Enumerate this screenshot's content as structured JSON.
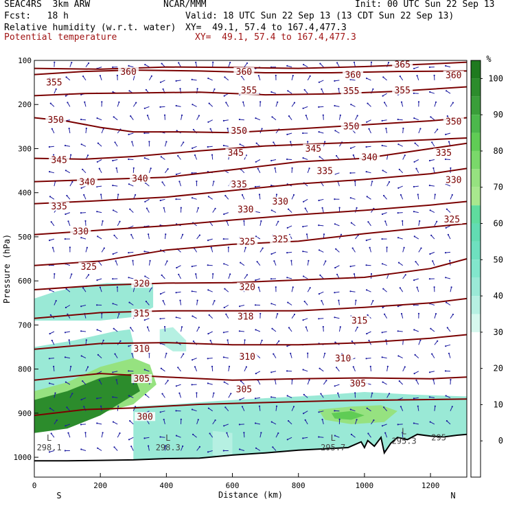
{
  "header": {
    "model": "SEAC4RS  3km ARW",
    "org": "NCAR/MMM",
    "init": "Init: 00 UTC Sun 22 Sep 13",
    "fcst": "Fcst:   18 h",
    "valid": "Valid: 18 UTC Sun 22 Sep 13 (13 CDT Sun 22 Sep 13)",
    "field1": "Relative humidity (w.r.t. water)",
    "field1_xy": "XY=  49.1, 57.4 to 167.4,477.3",
    "field2": "Potential temperature",
    "field2_xy": "XY=  49.1, 57.4 to 167.4,477.3"
  },
  "chart_data": {
    "type": "heatmap",
    "xlabel": "Distance (km)",
    "ylabel": "Pressure (hPa)",
    "xlim": [
      0,
      1310
    ],
    "ylim": [
      100,
      1045
    ],
    "x_ticks": [
      0,
      200,
      400,
      600,
      800,
      1000,
      1200
    ],
    "y_ticks": [
      100,
      200,
      300,
      400,
      500,
      600,
      700,
      800,
      900,
      1000
    ],
    "x_end_labels": {
      "left": "S",
      "right": "N"
    },
    "colorbar": {
      "unit": "%",
      "ticks": [
        100,
        90,
        80,
        70,
        60,
        50,
        40,
        30,
        20,
        10,
        0
      ],
      "bands": [
        {
          "from": 100,
          "to": 105,
          "color": "#1f7a1f"
        },
        {
          "from": 95,
          "to": 100,
          "color": "#2c8c2c"
        },
        {
          "from": 90,
          "to": 95,
          "color": "#3a9e3a"
        },
        {
          "from": 85,
          "to": 90,
          "color": "#4cb84c"
        },
        {
          "from": 80,
          "to": 85,
          "color": "#60cc55"
        },
        {
          "from": 75,
          "to": 80,
          "color": "#7ad86a"
        },
        {
          "from": 70,
          "to": 75,
          "color": "#96e280"
        },
        {
          "from": 65,
          "to": 70,
          "color": "#a8e88e"
        },
        {
          "from": 60,
          "to": 65,
          "color": "#5fdc9e"
        },
        {
          "from": 55,
          "to": 60,
          "color": "#62dcb2"
        },
        {
          "from": 50,
          "to": 55,
          "color": "#6ee0bf"
        },
        {
          "from": 45,
          "to": 50,
          "color": "#82e6cc"
        },
        {
          "from": 40,
          "to": 45,
          "color": "#9ae9d6"
        },
        {
          "from": 35,
          "to": 40,
          "color": "#b6f0e2"
        },
        {
          "from": 30,
          "to": 35,
          "color": "#d6f8ee"
        }
      ]
    },
    "rh_regions": [
      {
        "rh": 40,
        "points": [
          [
            0,
            640
          ],
          [
            60,
            625
          ],
          [
            140,
            612
          ],
          [
            220,
            605
          ],
          [
            360,
            606
          ],
          [
            360,
            660
          ],
          [
            300,
            682
          ],
          [
            200,
            690
          ],
          [
            100,
            690
          ],
          [
            0,
            690
          ]
        ]
      },
      {
        "rh": 35,
        "points": [
          [
            380,
            710
          ],
          [
            420,
            705
          ],
          [
            460,
            735
          ],
          [
            460,
            760
          ],
          [
            420,
            760
          ],
          [
            380,
            740
          ]
        ]
      },
      {
        "rh": 40,
        "points": [
          [
            0,
            750
          ],
          [
            120,
            735
          ],
          [
            240,
            715
          ],
          [
            290,
            710
          ],
          [
            300,
            740
          ],
          [
            300,
            835
          ],
          [
            250,
            870
          ],
          [
            150,
            895
          ],
          [
            0,
            900
          ]
        ]
      },
      {
        "rh": 70,
        "points": [
          [
            0,
            850
          ],
          [
            100,
            830
          ],
          [
            200,
            795
          ],
          [
            300,
            775
          ],
          [
            350,
            790
          ],
          [
            370,
            835
          ],
          [
            300,
            880
          ],
          [
            150,
            910
          ],
          [
            0,
            920
          ]
        ]
      },
      {
        "rh": 95,
        "points": [
          [
            0,
            870
          ],
          [
            100,
            850
          ],
          [
            200,
            820
          ],
          [
            300,
            810
          ],
          [
            320,
            850
          ],
          [
            200,
            905
          ],
          [
            100,
            935
          ],
          [
            0,
            945
          ]
        ]
      },
      {
        "rh": 40,
        "points": [
          [
            300,
            885
          ],
          [
            420,
            880
          ],
          [
            560,
            872
          ],
          [
            700,
            866
          ],
          [
            850,
            860
          ],
          [
            1000,
            852
          ],
          [
            1150,
            858
          ],
          [
            1310,
            862
          ],
          [
            1310,
            950
          ],
          [
            1100,
            985
          ],
          [
            700,
            1000
          ],
          [
            500,
            1008
          ],
          [
            300,
            1010
          ]
        ]
      },
      {
        "rh": 70,
        "points": [
          [
            860,
            892
          ],
          [
            960,
            885
          ],
          [
            1050,
            882
          ],
          [
            1100,
            895
          ],
          [
            1060,
            920
          ],
          [
            960,
            925
          ],
          [
            880,
            915
          ]
        ]
      },
      {
        "rh": 80,
        "points": [
          [
            900,
            900
          ],
          [
            960,
            895
          ],
          [
            1000,
            905
          ],
          [
            960,
            915
          ],
          [
            910,
            912
          ]
        ]
      },
      {
        "rh": 35,
        "points": [
          [
            540,
            940
          ],
          [
            600,
            945
          ],
          [
            600,
            1000
          ],
          [
            540,
            995
          ]
        ]
      }
    ],
    "potential_temperature": [
      {
        "theta": 365,
        "points": [
          [
            0,
            118
          ],
          [
            200,
            120
          ],
          [
            400,
            115
          ],
          [
            600,
            116
          ],
          [
            800,
            118
          ],
          [
            1000,
            114
          ],
          [
            1200,
            108
          ],
          [
            1310,
            104
          ]
        ]
      },
      {
        "theta": 360,
        "points": [
          [
            0,
            132
          ],
          [
            150,
            125
          ],
          [
            300,
            122
          ],
          [
            500,
            124
          ],
          [
            700,
            128
          ],
          [
            900,
            128
          ],
          [
            1100,
            125
          ],
          [
            1310,
            124
          ]
        ]
      },
      {
        "theta": 355,
        "points": [
          [
            0,
            180
          ],
          [
            150,
            175
          ],
          [
            300,
            174
          ],
          [
            500,
            172
          ],
          [
            700,
            178
          ],
          [
            900,
            176
          ],
          [
            1100,
            170
          ],
          [
            1310,
            160
          ]
        ]
      },
      {
        "theta": 350,
        "points": [
          [
            0,
            230
          ],
          [
            100,
            238
          ],
          [
            200,
            252
          ],
          [
            300,
            262
          ],
          [
            450,
            262
          ],
          [
            600,
            264
          ],
          [
            800,
            255
          ],
          [
            1000,
            246
          ],
          [
            1200,
            237
          ],
          [
            1310,
            230
          ]
        ]
      },
      {
        "theta": 345,
        "points": [
          [
            0,
            322
          ],
          [
            150,
            324
          ],
          [
            300,
            318
          ],
          [
            500,
            305
          ],
          [
            700,
            294
          ],
          [
            900,
            288
          ],
          [
            1100,
            283
          ],
          [
            1310,
            276
          ]
        ]
      },
      {
        "theta": 340,
        "points": [
          [
            0,
            375
          ],
          [
            200,
            370
          ],
          [
            400,
            365
          ],
          [
            600,
            348
          ],
          [
            800,
            330
          ],
          [
            1000,
            322
          ],
          [
            1200,
            300
          ],
          [
            1310,
            288
          ]
        ]
      },
      {
        "theta": 335,
        "points": [
          [
            0,
            425
          ],
          [
            200,
            418
          ],
          [
            400,
            410
          ],
          [
            600,
            395
          ],
          [
            800,
            380
          ],
          [
            1000,
            370
          ],
          [
            1200,
            357
          ],
          [
            1310,
            345
          ]
        ]
      },
      {
        "theta": 330,
        "points": [
          [
            0,
            495
          ],
          [
            200,
            485
          ],
          [
            400,
            475
          ],
          [
            600,
            462
          ],
          [
            800,
            450
          ],
          [
            1000,
            440
          ],
          [
            1200,
            428
          ],
          [
            1310,
            420
          ]
        ]
      },
      {
        "theta": 325,
        "points": [
          [
            0,
            565
          ],
          [
            200,
            555
          ],
          [
            400,
            530
          ],
          [
            600,
            517
          ],
          [
            800,
            510
          ],
          [
            1000,
            493
          ],
          [
            1200,
            478
          ],
          [
            1310,
            470
          ]
        ]
      },
      {
        "theta": 320,
        "points": [
          [
            0,
            620
          ],
          [
            200,
            610
          ],
          [
            400,
            605
          ],
          [
            600,
            604
          ],
          [
            800,
            598
          ],
          [
            1000,
            592
          ],
          [
            1200,
            572
          ],
          [
            1310,
            550
          ]
        ]
      },
      {
        "theta": 315,
        "points": [
          [
            0,
            685
          ],
          [
            200,
            672
          ],
          [
            400,
            668
          ],
          [
            600,
            668
          ],
          [
            800,
            668
          ],
          [
            1000,
            660
          ],
          [
            1200,
            650
          ],
          [
            1310,
            640
          ]
        ]
      },
      {
        "theta": 310,
        "points": [
          [
            0,
            755
          ],
          [
            200,
            742
          ],
          [
            400,
            740
          ],
          [
            600,
            745
          ],
          [
            800,
            745
          ],
          [
            1000,
            740
          ],
          [
            1200,
            730
          ],
          [
            1310,
            722
          ]
        ]
      },
      {
        "theta": 305,
        "points": [
          [
            0,
            825
          ],
          [
            200,
            810
          ],
          [
            400,
            818
          ],
          [
            600,
            825
          ],
          [
            800,
            822
          ],
          [
            1000,
            820
          ],
          [
            1200,
            822
          ],
          [
            1310,
            818
          ]
        ]
      },
      {
        "theta": 300,
        "points": [
          [
            0,
            905
          ],
          [
            150,
            892
          ],
          [
            300,
            888
          ],
          [
            500,
            880
          ],
          [
            700,
            876
          ],
          [
            900,
            872
          ],
          [
            1100,
            870
          ],
          [
            1310,
            868
          ]
        ]
      }
    ],
    "theta_labels": [
      {
        "text": "365",
        "x": 1115,
        "p": 112
      },
      {
        "text": "360",
        "x": 285,
        "p": 128
      },
      {
        "text": "360",
        "x": 635,
        "p": 128
      },
      {
        "text": "360",
        "x": 965,
        "p": 135
      },
      {
        "text": "360",
        "x": 1270,
        "p": 136
      },
      {
        "text": "355",
        "x": 60,
        "p": 152
      },
      {
        "text": "355",
        "x": 650,
        "p": 170
      },
      {
        "text": "355",
        "x": 960,
        "p": 172
      },
      {
        "text": "355",
        "x": 1115,
        "p": 170
      },
      {
        "text": "350",
        "x": 65,
        "p": 237
      },
      {
        "text": "350",
        "x": 620,
        "p": 262
      },
      {
        "text": "350",
        "x": 960,
        "p": 252
      },
      {
        "text": "350",
        "x": 1270,
        "p": 241
      },
      {
        "text": "345",
        "x": 610,
        "p": 312
      },
      {
        "text": "345",
        "x": 845,
        "p": 302
      },
      {
        "text": "345",
        "x": 75,
        "p": 328
      },
      {
        "text": "340",
        "x": 1015,
        "p": 322
      },
      {
        "text": "335",
        "x": 1240,
        "p": 312
      },
      {
        "text": "335",
        "x": 880,
        "p": 353
      },
      {
        "text": "340",
        "x": 160,
        "p": 378
      },
      {
        "text": "340",
        "x": 320,
        "p": 370
      },
      {
        "text": "330",
        "x": 1270,
        "p": 373
      },
      {
        "text": "335",
        "x": 620,
        "p": 383
      },
      {
        "text": "330",
        "x": 745,
        "p": 422
      },
      {
        "text": "335",
        "x": 75,
        "p": 433
      },
      {
        "text": "330",
        "x": 640,
        "p": 440
      },
      {
        "text": "325",
        "x": 1265,
        "p": 463
      },
      {
        "text": "330",
        "x": 140,
        "p": 490
      },
      {
        "text": "325",
        "x": 645,
        "p": 513
      },
      {
        "text": "325",
        "x": 745,
        "p": 508
      },
      {
        "text": "325",
        "x": 165,
        "p": 570
      },
      {
        "text": "320",
        "x": 325,
        "p": 608
      },
      {
        "text": "320",
        "x": 645,
        "p": 616
      },
      {
        "text": "315",
        "x": 325,
        "p": 676
      },
      {
        "text": "318",
        "x": 640,
        "p": 683
      },
      {
        "text": "315",
        "x": 985,
        "p": 692
      },
      {
        "text": "310",
        "x": 325,
        "p": 756
      },
      {
        "text": "310",
        "x": 645,
        "p": 774
      },
      {
        "text": "310",
        "x": 935,
        "p": 778
      },
      {
        "text": "305",
        "x": 325,
        "p": 824
      },
      {
        "text": "305",
        "x": 635,
        "p": 848
      },
      {
        "text": "305",
        "x": 980,
        "p": 835
      },
      {
        "text": "300",
        "x": 335,
        "p": 910
      }
    ],
    "pressure_extrema": [
      {
        "label": "L",
        "value": "298.1",
        "x": 45,
        "p": 975
      },
      {
        "label": "L",
        "value": "298.3",
        "x": 405,
        "p": 975
      },
      {
        "label": "L",
        "value": "295.7",
        "x": 905,
        "p": 975
      },
      {
        "label": "L",
        "value": "295.3",
        "x": 1120,
        "p": 960
      },
      {
        "label": "",
        "value": "295",
        "x": 1225,
        "p": 952
      }
    ],
    "terrain": [
      [
        0,
        1008
      ],
      [
        100,
        1008
      ],
      [
        200,
        1007
      ],
      [
        300,
        1006
      ],
      [
        400,
        1003
      ],
      [
        500,
        1002
      ],
      [
        600,
        995
      ],
      [
        700,
        990
      ],
      [
        800,
        984
      ],
      [
        900,
        980
      ],
      [
        950,
        978
      ],
      [
        990,
        965
      ],
      [
        1000,
        978
      ],
      [
        1010,
        962
      ],
      [
        1030,
        975
      ],
      [
        1050,
        955
      ],
      [
        1060,
        990
      ],
      [
        1080,
        968
      ],
      [
        1100,
        955
      ],
      [
        1130,
        960
      ],
      [
        1160,
        948
      ],
      [
        1200,
        952
      ],
      [
        1240,
        954
      ],
      [
        1280,
        950
      ],
      [
        1310,
        948
      ]
    ],
    "wind_barbs": "light-north-south-cross-section"
  }
}
